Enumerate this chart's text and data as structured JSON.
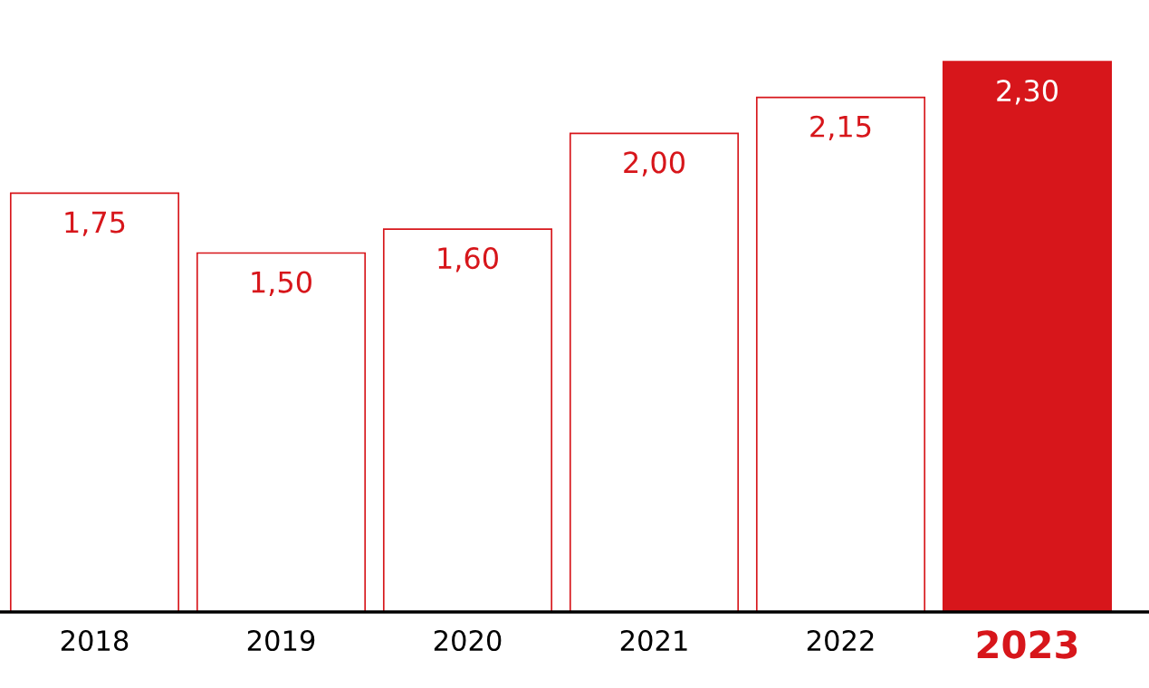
{
  "chart_data": {
    "type": "bar",
    "categories": [
      "2018",
      "2019",
      "2020",
      "2021",
      "2022",
      "2023"
    ],
    "values": [
      1.75,
      1.5,
      1.6,
      2.0,
      2.15,
      2.3
    ],
    "value_labels": [
      "1,75",
      "1,50",
      "1,60",
      "2,00",
      "2,15",
      "2,30"
    ],
    "color": "#d7161b",
    "colors": [
      "#ffffff",
      "#ffffff",
      "#ffffff",
      "#ffffff",
      "#ffffff",
      "#d7161b"
    ],
    "grid": false,
    "legend": false
  }
}
